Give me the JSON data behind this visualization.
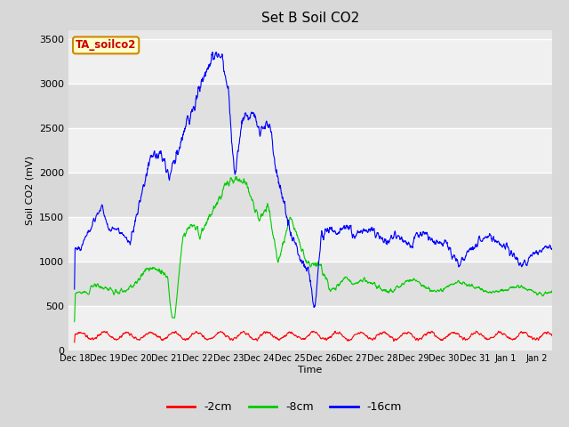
{
  "title": "Set B Soil CO2",
  "ylabel": "Soil CO2 (mV)",
  "xlabel": "Time",
  "legend_label": "TA_soilco2",
  "series_labels": [
    "-2cm",
    "-8cm",
    "-16cm"
  ],
  "series_colors": [
    "#ff0000",
    "#00cc00",
    "#0000ff"
  ],
  "ylim": [
    0,
    3600
  ],
  "yticks": [
    0,
    500,
    1000,
    1500,
    2000,
    2500,
    3000,
    3500
  ],
  "bg_color": "#d8d8d8",
  "plot_bg_color": "#e8e8e8",
  "grid_color": "#ffffff",
  "legend_box_color": "#ffffcc",
  "legend_box_edge": "#cc8800",
  "legend_text_color": "#cc0000",
  "n_days": 16,
  "n_points": 1600,
  "figwidth": 6.4,
  "figheight": 4.8,
  "dpi": 100
}
